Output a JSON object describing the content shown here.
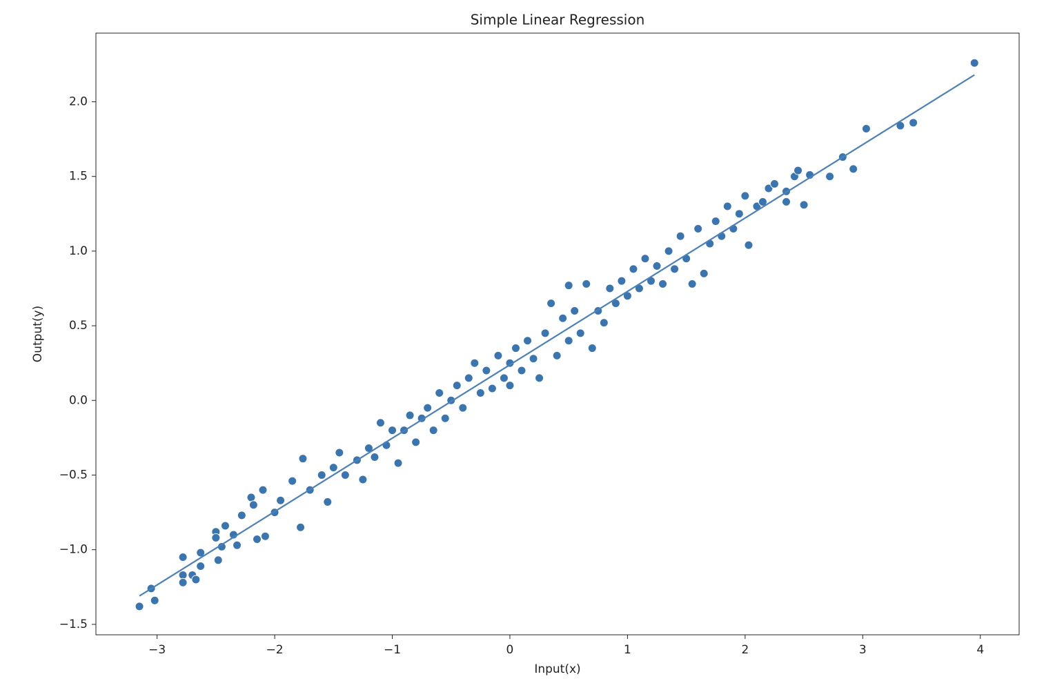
{
  "chart_data": {
    "type": "scatter",
    "title": "Simple Linear Regression",
    "xlabel": "Input(x)",
    "ylabel": "Output(y)",
    "xlim": [
      -3.52,
      4.33
    ],
    "ylim": [
      -1.57,
      2.46
    ],
    "xticks": [
      {
        "value": -3,
        "label": "−3"
      },
      {
        "value": -2,
        "label": "−2"
      },
      {
        "value": -1,
        "label": "−1"
      },
      0,
      1,
      2,
      3,
      4
    ],
    "yticks": [
      {
        "value": -1.5,
        "label": "−1.5"
      },
      {
        "value": -1,
        "label": "−1.0"
      },
      {
        "value": -0.5,
        "label": "−0.5"
      },
      {
        "value": 0,
        "label": "0.0"
      },
      0.5,
      {
        "value": 1,
        "label": "1.0"
      },
      1.5,
      {
        "value": 2,
        "label": "2.0"
      }
    ],
    "series": [
      {
        "type": "scatter",
        "color": "#3a75b0",
        "x": [
          -3.15,
          -3.05,
          -3.02,
          -2.78,
          -2.78,
          -2.78,
          -2.7,
          -2.67,
          -2.63,
          -2.63,
          -2.5,
          -2.5,
          -2.48,
          -2.45,
          -2.42,
          -2.35,
          -2.32,
          -2.28,
          -2.2,
          -2.18,
          -2.15,
          -2.1,
          -2.08,
          -2.0,
          -1.95,
          -1.85,
          -1.78,
          -1.76,
          -1.7,
          -1.6,
          -1.55,
          -1.5,
          -1.45,
          -1.4,
          -1.3,
          -1.25,
          -1.2,
          -1.15,
          -1.1,
          -1.05,
          -1.0,
          -0.95,
          -0.9,
          -0.85,
          -0.8,
          -0.75,
          -0.7,
          -0.65,
          -0.6,
          -0.55,
          -0.5,
          -0.45,
          -0.4,
          -0.35,
          -0.3,
          -0.25,
          -0.2,
          -0.15,
          -0.1,
          -0.05,
          0.0,
          0.0,
          0.05,
          0.1,
          0.15,
          0.2,
          0.25,
          0.3,
          0.35,
          0.4,
          0.45,
          0.5,
          0.5,
          0.55,
          0.6,
          0.65,
          0.7,
          0.75,
          0.8,
          0.85,
          0.9,
          0.95,
          1.0,
          1.05,
          1.1,
          1.15,
          1.2,
          1.25,
          1.3,
          1.35,
          1.4,
          1.45,
          1.5,
          1.55,
          1.6,
          1.65,
          1.7,
          1.75,
          1.8,
          1.85,
          1.9,
          1.95,
          2.0,
          2.03,
          2.1,
          2.15,
          2.2,
          2.25,
          2.35,
          2.35,
          2.42,
          2.45,
          2.5,
          2.55,
          2.72,
          2.83,
          2.92,
          3.03,
          3.32,
          3.43,
          3.95
        ],
        "values": [
          -1.38,
          -1.26,
          -1.34,
          -1.05,
          -1.17,
          -1.22,
          -1.17,
          -1.2,
          -1.02,
          -1.11,
          -0.88,
          -0.92,
          -1.07,
          -0.98,
          -0.84,
          -0.9,
          -0.97,
          -0.77,
          -0.65,
          -0.7,
          -0.93,
          -0.6,
          -0.91,
          -0.75,
          -0.67,
          -0.54,
          -0.85,
          -0.39,
          -0.6,
          -0.5,
          -0.68,
          -0.45,
          -0.35,
          -0.5,
          -0.4,
          -0.53,
          -0.32,
          -0.38,
          -0.15,
          -0.3,
          -0.2,
          -0.42,
          -0.2,
          -0.1,
          -0.28,
          -0.12,
          -0.05,
          -0.2,
          0.05,
          -0.12,
          0.0,
          0.1,
          -0.05,
          0.15,
          0.25,
          0.05,
          0.2,
          0.08,
          0.3,
          0.15,
          0.25,
          0.1,
          0.35,
          0.2,
          0.4,
          0.28,
          0.15,
          0.45,
          0.65,
          0.3,
          0.55,
          0.4,
          0.77,
          0.6,
          0.45,
          0.78,
          0.35,
          0.6,
          0.52,
          0.75,
          0.65,
          0.8,
          0.7,
          0.88,
          0.75,
          0.95,
          0.8,
          0.9,
          0.78,
          1.0,
          0.88,
          1.1,
          0.95,
          0.78,
          1.15,
          0.85,
          1.05,
          1.2,
          1.1,
          1.3,
          1.15,
          1.25,
          1.37,
          1.04,
          1.3,
          1.33,
          1.42,
          1.45,
          1.4,
          1.33,
          1.5,
          1.54,
          1.31,
          1.51,
          1.5,
          1.63,
          1.55,
          1.82,
          1.84,
          1.86,
          2.26
        ]
      },
      {
        "type": "line",
        "color": "#4c81b8",
        "x": [
          -3.15,
          3.95
        ],
        "values": [
          -1.31,
          2.18
        ]
      }
    ]
  }
}
